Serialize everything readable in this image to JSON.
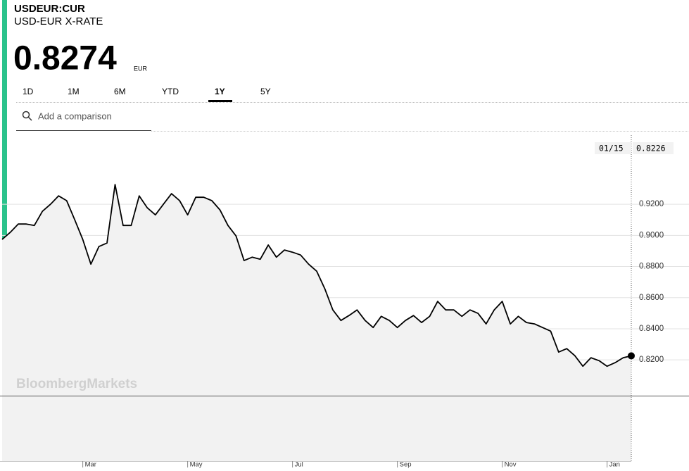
{
  "header": {
    "ticker": "USDEUR:CUR",
    "name": "USD-EUR X-RATE",
    "price": "0.8274",
    "currency": "EUR"
  },
  "tabs": [
    "1D",
    "1M",
    "6M",
    "YTD",
    "1Y",
    "5Y"
  ],
  "active_tab": 4,
  "search": {
    "placeholder": "Add a comparison"
  },
  "tooltip": {
    "date": "01/15",
    "value": "0.8226"
  },
  "watermark": "BloombergMarkets",
  "chart_data": {
    "type": "line",
    "categories": [
      null,
      null,
      null,
      null,
      null,
      null,
      null,
      null,
      null,
      null,
      "Mar",
      null,
      null,
      null,
      null,
      null,
      null,
      null,
      null,
      null,
      null,
      null,
      null,
      "May",
      null,
      null,
      null,
      null,
      null,
      null,
      null,
      null,
      null,
      null,
      null,
      null,
      "Jul",
      null,
      null,
      null,
      null,
      null,
      null,
      null,
      null,
      null,
      null,
      null,
      null,
      "Sep",
      null,
      null,
      null,
      null,
      null,
      null,
      null,
      null,
      null,
      null,
      null,
      null,
      "Nov",
      null,
      null,
      null,
      null,
      null,
      null,
      null,
      null,
      null,
      null,
      null,
      null,
      "Jan",
      null,
      null,
      null
    ],
    "series": [
      {
        "name": "USDEUR:CUR",
        "color": "#000000",
        "values": [
          0.8974,
          0.9019,
          0.9073,
          0.9073,
          0.9064,
          0.9155,
          0.92,
          0.9254,
          0.9223,
          0.91,
          0.8974,
          0.8815,
          0.8928,
          0.8951,
          0.9327,
          0.9064,
          0.9064,
          0.9254,
          0.9177,
          0.9132,
          0.92,
          0.9268,
          0.9223,
          0.9132,
          0.9245,
          0.9245,
          0.9223,
          0.9164,
          0.9064,
          0.8996,
          0.8838,
          0.886,
          0.8847,
          0.8938,
          0.886,
          0.8906,
          0.8892,
          0.8874,
          0.8815,
          0.877,
          0.8657,
          0.8521,
          0.8453,
          0.8485,
          0.8521,
          0.8453,
          0.8408,
          0.848,
          0.8453,
          0.8408,
          0.8453,
          0.8485,
          0.844,
          0.848,
          0.8576,
          0.8521,
          0.8521,
          0.848,
          0.8521,
          0.8499,
          0.8431,
          0.8521,
          0.8576,
          0.8431,
          0.848,
          0.844,
          0.8431,
          0.8408,
          0.8385,
          0.825,
          0.8272,
          0.8227,
          0.8159,
          0.8214,
          0.8195,
          0.8159,
          0.8182,
          0.8214,
          0.8226
        ]
      }
    ],
    "ylim": [
      0.797,
      0.961
    ],
    "yticks": [
      {
        "value": 0.82,
        "label": "0.8200"
      },
      {
        "value": 0.84,
        "label": "0.8400"
      },
      {
        "value": 0.86,
        "label": "0.8600"
      },
      {
        "value": 0.88,
        "label": "0.8800"
      },
      {
        "value": 0.9,
        "label": "0.9000"
      },
      {
        "value": 0.92,
        "label": "0.9200"
      }
    ],
    "grid": true
  }
}
